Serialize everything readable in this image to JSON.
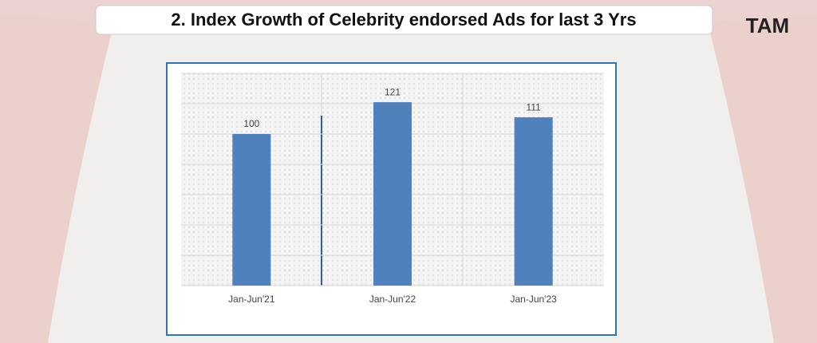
{
  "logo": "TAM",
  "chart_data": {
    "type": "bar",
    "title": "2. Index Growth of Celebrity endorsed Ads for last 3 Yrs",
    "categories": [
      "Jan-Jun'21",
      "Jan-Jun'22",
      "Jan-Jun'23"
    ],
    "values": [
      100,
      121,
      111
    ],
    "color": "#4f81bd",
    "ylim": [
      0,
      140
    ],
    "yticks": [
      0,
      20,
      40,
      60,
      80,
      100,
      120,
      140
    ],
    "grid": true
  }
}
